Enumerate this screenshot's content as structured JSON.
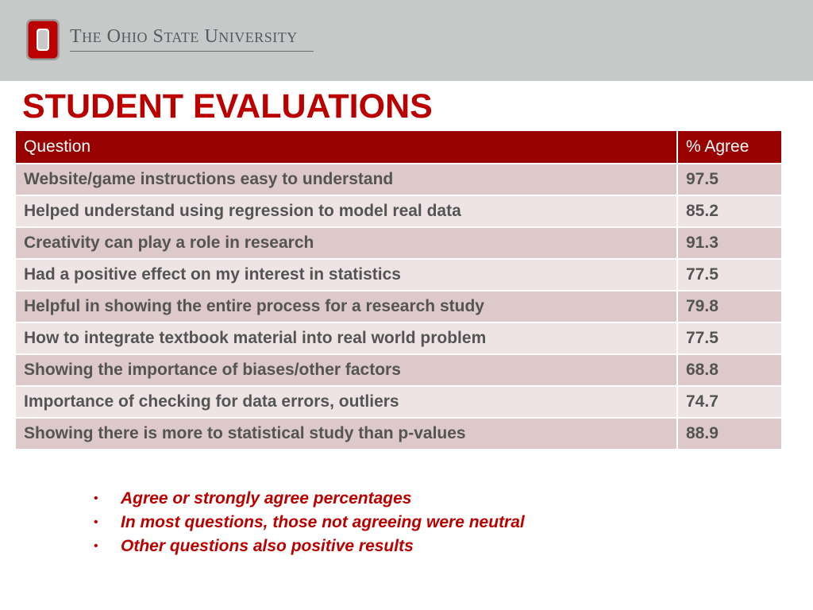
{
  "header": {
    "university_name_words": [
      {
        "cap": "T",
        "rest": "HE"
      },
      {
        "cap": "O",
        "rest": "HIO"
      },
      {
        "cap": "S",
        "rest": "TATE"
      },
      {
        "cap": "U",
        "rest": "NIVERSITY"
      }
    ],
    "logo_icon": "block-o-logo-icon",
    "colors": {
      "band": "#c7c9c8",
      "accent": "#bb0000",
      "table_header": "#990000"
    }
  },
  "slide": {
    "title": "STUDENT EVALUATIONS"
  },
  "table": {
    "headers": [
      "Question",
      "% Agree"
    ],
    "rows": [
      [
        "Website/game instructions easy to understand",
        "97.5"
      ],
      [
        "Helped understand using regression to model real data",
        "85.2"
      ],
      [
        "Creativity can play a role in research",
        "91.3"
      ],
      [
        "Had a positive effect on my interest in statistics",
        "77.5"
      ],
      [
        "Helpful in showing the entire process for a research study",
        "79.8"
      ],
      [
        "How to integrate textbook material into real world problem",
        "77.5"
      ],
      [
        "Showing the importance of biases/other factors",
        "68.8"
      ],
      [
        "Importance of checking for data errors, outliers",
        "74.7"
      ],
      [
        "Showing there is more to statistical study than p-values",
        "88.9"
      ]
    ]
  },
  "notes": {
    "bullet_glyph": "•",
    "items": [
      "Agree or strongly agree percentages",
      "In most questions, those not agreeing were neutral",
      "Other questions also positive results"
    ]
  }
}
